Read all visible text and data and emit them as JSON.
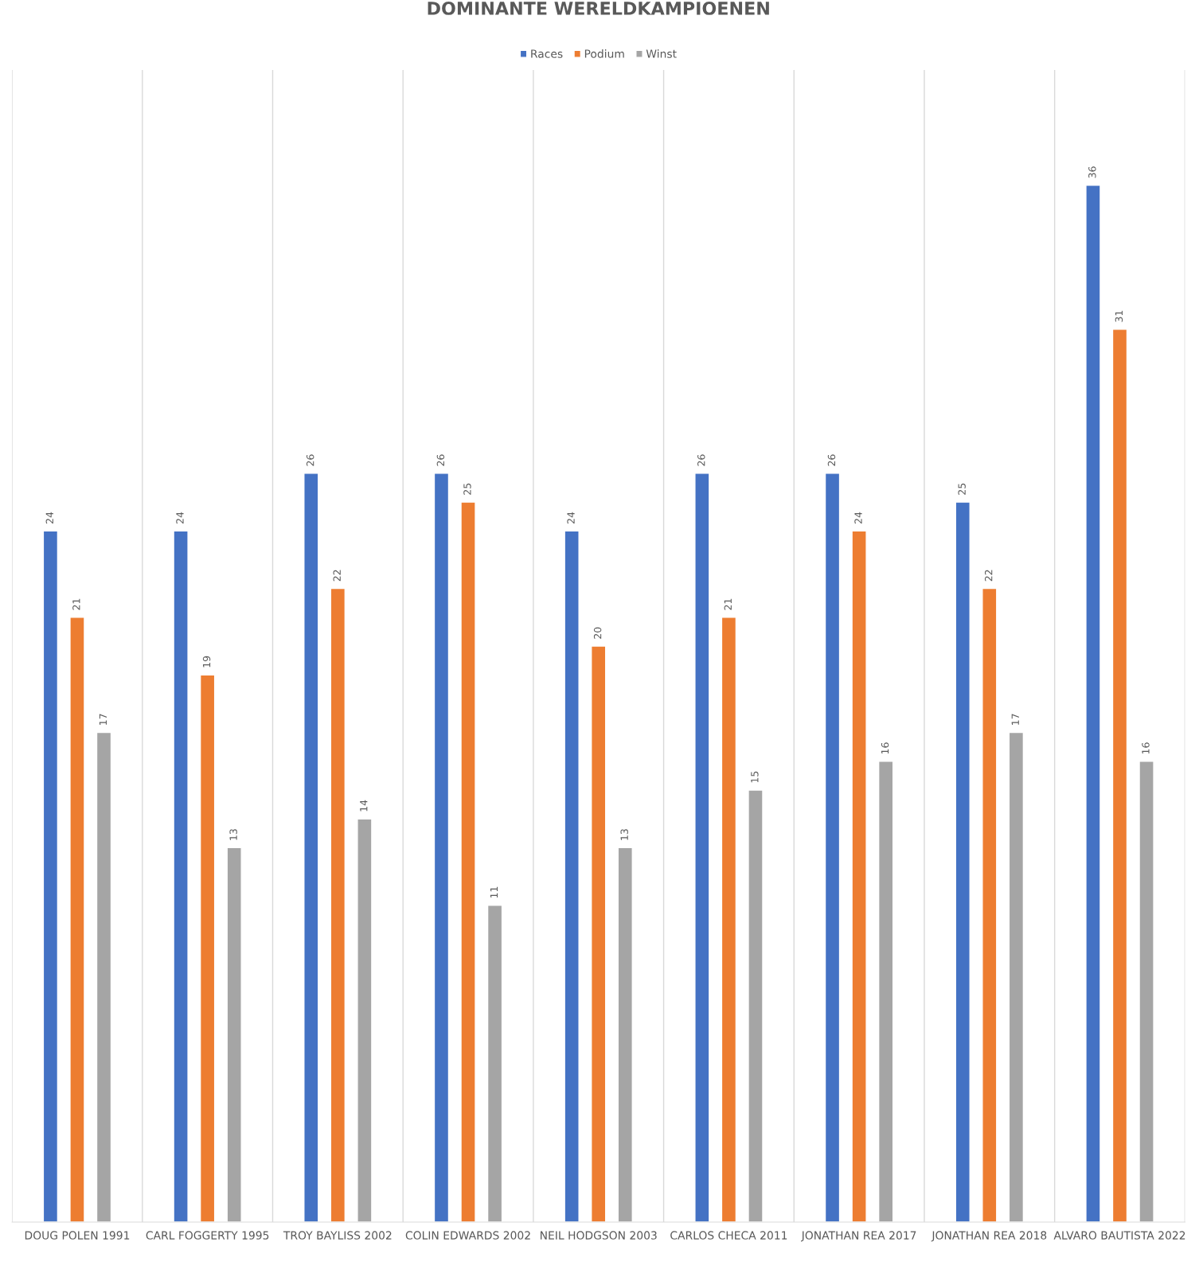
{
  "chart_data": {
    "type": "bar",
    "title": "DOMINANTE WERELDKAMPIOENEN",
    "categories": [
      "DOUG POLEN 1991",
      "CARL FOGGERTY 1995",
      "TROY BAYLISS 2002",
      "COLIN EDWARDS 2002",
      "NEIL HODGSON 2003",
      "CARLOS CHECA 2011",
      "JONATHAN REA 2017",
      "JONATHAN REA 2018",
      "ALVARO BAUTISTA 2022"
    ],
    "series": [
      {
        "name": "Races",
        "color": "#4472c4",
        "values": [
          24,
          24,
          26,
          26,
          24,
          26,
          26,
          25,
          36
        ]
      },
      {
        "name": "Podium",
        "color": "#ed7d31",
        "values": [
          21,
          19,
          22,
          25,
          20,
          21,
          24,
          22,
          31
        ]
      },
      {
        "name": "Winst",
        "color": "#a5a5a5",
        "values": [
          17,
          13,
          14,
          11,
          13,
          15,
          16,
          17,
          16
        ]
      }
    ],
    "ylim": [
      0,
      40
    ],
    "tick_labels": "x",
    "data_labels": true,
    "grid": "x",
    "legend": "top"
  }
}
